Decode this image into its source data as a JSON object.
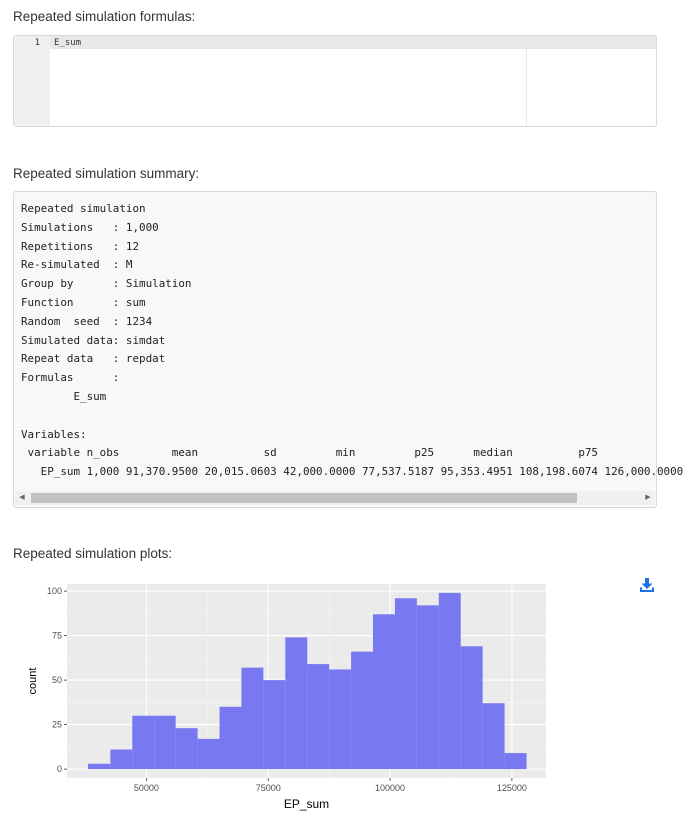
{
  "formulas": {
    "title": "Repeated simulation formulas:",
    "line_number": "1",
    "code": "E_sum"
  },
  "summary": {
    "title": "Repeated simulation summary:",
    "text": "Repeated simulation\nSimulations   : 1,000\nRepetitions   : 12\nRe-simulated  : M\nGroup by      : Simulation\nFunction      : sum\nRandom  seed  : 1234\nSimulated data: simdat\nRepeat data   : repdat\nFormulas      :\n        E_sum\n\nVariables:\n variable n_obs        mean          sd         min         p25      median          p75\n   EP_sum 1,000 91,370.9500 20,015.0603 42,000.0000 77,537.5187 95,353.4951 108,198.6074 126,000.0000"
  },
  "plots": {
    "title": "Repeated simulation plots:",
    "download_icon": "download-icon"
  },
  "chart_data": {
    "type": "bar",
    "title": "",
    "xlabel": "EP_sum",
    "ylabel": "count",
    "bar_color": "#7878f0",
    "panel_bg": "#ebebeb",
    "grid": true,
    "xlim": [
      33700,
      132000
    ],
    "ylim": [
      -5,
      104
    ],
    "xticks": [
      50000,
      75000,
      100000,
      125000
    ],
    "xtick_labels": [
      "50000",
      "75000",
      "100000",
      "125000"
    ],
    "yticks": [
      0,
      25,
      50,
      75,
      100
    ],
    "ytick_labels": [
      "0",
      "25",
      "50",
      "75",
      "100"
    ],
    "bins": [
      {
        "x0": 38000,
        "x1": 42600,
        "count": 3
      },
      {
        "x0": 42600,
        "x1": 47100,
        "count": 11
      },
      {
        "x0": 47100,
        "x1": 51600,
        "count": 30
      },
      {
        "x0": 51600,
        "x1": 56000,
        "count": 30
      },
      {
        "x0": 56000,
        "x1": 60500,
        "count": 23
      },
      {
        "x0": 60500,
        "x1": 65000,
        "count": 17
      },
      {
        "x0": 65000,
        "x1": 69500,
        "count": 35
      },
      {
        "x0": 69500,
        "x1": 74000,
        "count": 57
      },
      {
        "x0": 74000,
        "x1": 78500,
        "count": 50
      },
      {
        "x0": 78500,
        "x1": 83000,
        "count": 74
      },
      {
        "x0": 83000,
        "x1": 87500,
        "count": 59
      },
      {
        "x0": 87500,
        "x1": 92000,
        "count": 56
      },
      {
        "x0": 92000,
        "x1": 96500,
        "count": 66
      },
      {
        "x0": 96500,
        "x1": 101000,
        "count": 87
      },
      {
        "x0": 101000,
        "x1": 105500,
        "count": 96
      },
      {
        "x0": 105500,
        "x1": 110000,
        "count": 92
      },
      {
        "x0": 110000,
        "x1": 114500,
        "count": 99
      },
      {
        "x0": 114500,
        "x1": 119000,
        "count": 69
      },
      {
        "x0": 119000,
        "x1": 123500,
        "count": 37
      },
      {
        "x0": 123500,
        "x1": 128000,
        "count": 9
      }
    ]
  }
}
